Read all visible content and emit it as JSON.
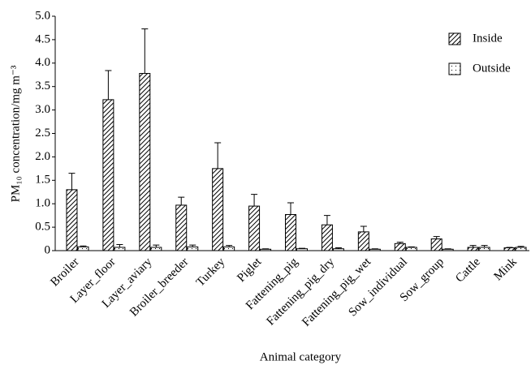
{
  "chart_data": {
    "type": "bar",
    "xlabel": "Animal category",
    "ylabel": "PM₁₀ concentration/mg m⁻³",
    "categories": [
      "Broiler",
      "Layer_floor",
      "Layer_aviary",
      "Broiler_breeder",
      "Turkey",
      "Piglet",
      "Fattening_pig",
      "Fattening_pig_dry",
      "Fattening_pig_wet",
      "Sow_individual",
      "Sow_group",
      "Cattle",
      "Mink"
    ],
    "series": [
      {
        "name": "Inside",
        "color": "#000000",
        "pattern": "hatch",
        "values": [
          1.3,
          3.22,
          3.78,
          0.97,
          1.75,
          0.95,
          0.77,
          0.55,
          0.4,
          0.15,
          0.25,
          0.07,
          0.06
        ],
        "errors": [
          0.35,
          0.62,
          0.95,
          0.17,
          0.55,
          0.25,
          0.25,
          0.2,
          0.12,
          0.03,
          0.05,
          0.04,
          0.01
        ]
      },
      {
        "name": "Outside",
        "color": "#000000",
        "pattern": "dots",
        "values": [
          0.08,
          0.07,
          0.07,
          0.08,
          0.08,
          0.03,
          0.04,
          0.04,
          0.03,
          0.07,
          0.03,
          0.07,
          0.07
        ],
        "errors": [
          0.02,
          0.06,
          0.05,
          0.04,
          0.03,
          0.01,
          0.01,
          0.02,
          0.01,
          0.01,
          0.01,
          0.04,
          0.02
        ]
      }
    ],
    "ylim": [
      0,
      5
    ],
    "yticks": [
      0,
      0.5,
      {
        "value": 1,
        "label": "1.0"
      },
      1.5,
      {
        "value": 2,
        "label": "2.0"
      },
      2.5,
      {
        "value": 3,
        "label": "3.0"
      },
      3.5,
      {
        "value": 4,
        "label": "4.0"
      },
      4.5,
      {
        "value": 5,
        "label": "5.0"
      }
    ],
    "grid": false,
    "legend": "upper right"
  }
}
